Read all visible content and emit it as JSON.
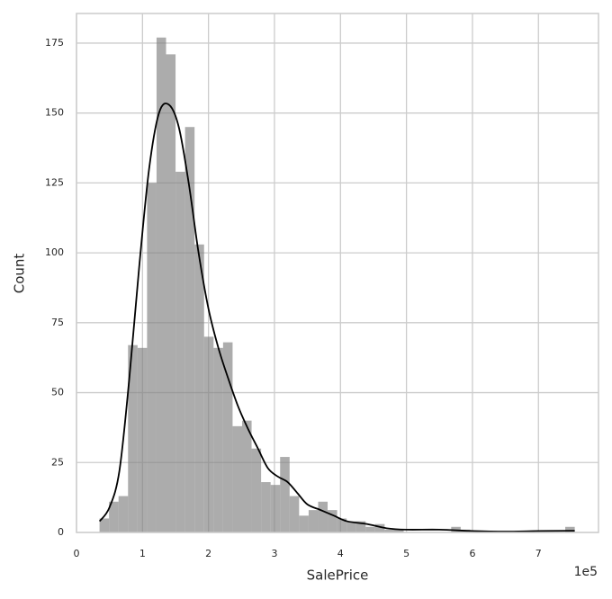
{
  "chart_data": {
    "type": "histogram",
    "x_label": "SalePrice",
    "y_label": "Count",
    "x_offset_label": "1e5",
    "bins": [
      34900,
      49302,
      63704,
      78106,
      92508,
      106910,
      121312,
      135714,
      150116,
      164518,
      178920,
      193322,
      207724,
      222126,
      236528,
      250930,
      265332,
      279734,
      294136,
      308538,
      322940,
      337342,
      351744,
      366146,
      380548,
      394950,
      409352,
      423754,
      438156,
      452558,
      466960,
      481362,
      495764,
      510166,
      524568,
      538970,
      553372,
      567774,
      582176,
      596578,
      610980,
      625382,
      639784,
      654186,
      668588,
      682990,
      697392,
      711794,
      726196,
      740598,
      755000
    ],
    "counts": [
      5,
      11,
      13,
      67,
      66,
      125,
      177,
      171,
      129,
      145,
      103,
      70,
      66,
      68,
      38,
      40,
      30,
      18,
      17,
      27,
      13,
      6,
      8,
      11,
      8,
      5,
      4,
      4,
      2,
      3,
      1,
      1,
      0,
      0,
      0,
      0,
      0,
      2,
      1,
      0,
      0,
      0,
      0,
      0,
      0,
      0,
      0,
      0,
      0,
      2
    ],
    "color": "#7f7f7f",
    "kde": {
      "color": "#000000",
      "x": [
        35000,
        50000,
        65000,
        80000,
        95000,
        110000,
        125000,
        140000,
        155000,
        170000,
        185000,
        200000,
        215000,
        230000,
        245000,
        260000,
        275000,
        290000,
        305000,
        320000,
        335000,
        350000,
        370000,
        390000,
        410000,
        440000,
        470000,
        500000,
        550000,
        600000,
        650000,
        700000,
        755000
      ],
      "y": [
        4,
        9,
        22,
        55,
        95,
        130,
        150,
        153,
        145,
        125,
        100,
        80,
        66,
        55,
        45,
        37,
        30,
        23,
        20,
        18,
        14,
        10,
        8,
        6,
        4,
        3,
        1.5,
        1,
        1,
        0.5,
        0.3,
        0.5,
        0.6
      ]
    },
    "xlim": [
      0,
      791000
    ],
    "ylim": [
      0,
      185.6
    ],
    "xticks": [
      {
        "value": 0,
        "label": "0"
      },
      {
        "value": 100000,
        "label": "1"
      },
      {
        "value": 200000,
        "label": "2"
      },
      {
        "value": 300000,
        "label": "3"
      },
      {
        "value": 400000,
        "label": "4"
      },
      {
        "value": 500000,
        "label": "5"
      },
      {
        "value": 600000,
        "label": "6"
      },
      {
        "value": 700000,
        "label": "7"
      }
    ],
    "yticks": [
      0,
      25,
      50,
      75,
      100,
      125,
      150,
      175
    ],
    "grid": true
  }
}
